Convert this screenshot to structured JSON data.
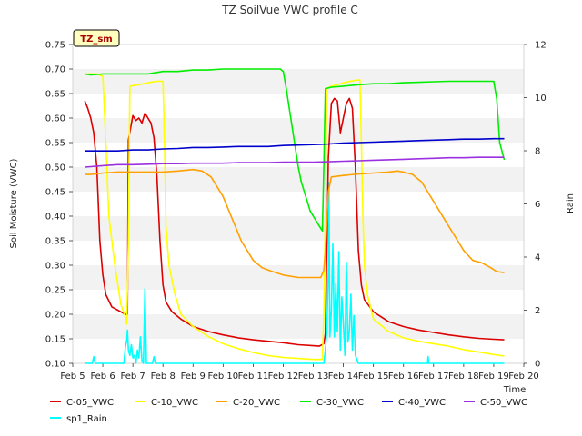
{
  "chart_data": {
    "type": "line",
    "title": "TZ SoilVue VWC profile C",
    "xlabel": "Time",
    "ylabel": "Soil Moisture (VWC)",
    "y2label": "Rain",
    "badge": "TZ_sm",
    "ylim": [
      0.1,
      0.75
    ],
    "y2lim": [
      0,
      12
    ],
    "xlim": [
      5,
      20
    ],
    "x_ticks": [
      5,
      6,
      7,
      8,
      9,
      10,
      11,
      12,
      13,
      14,
      15,
      16,
      17,
      18,
      19,
      20
    ],
    "x_tick_labels": [
      "Feb 5",
      "Feb 6",
      "Feb 7",
      "Feb 8",
      "Feb 9",
      "Feb 10",
      "Feb 11",
      "Feb 12",
      "Feb 13",
      "Feb 14",
      "Feb 15",
      "Feb 16",
      "Feb 17",
      "Feb 18",
      "Feb 19",
      "Feb 20"
    ],
    "y_ticks": [
      0.1,
      0.15,
      0.2,
      0.25,
      0.3,
      0.35,
      0.4,
      0.45,
      0.5,
      0.55,
      0.6,
      0.65,
      0.7,
      0.75
    ],
    "y_tick_labels": [
      "0.10",
      "0.15",
      "0.20",
      "0.25",
      "0.30",
      "0.35",
      "0.40",
      "0.45",
      "0.50",
      "0.55",
      "0.60",
      "0.65",
      "0.70",
      "0.75"
    ],
    "y2_ticks": [
      0,
      2,
      4,
      6,
      8,
      10,
      12
    ],
    "y2_tick_labels": [
      "0",
      "2",
      "4",
      "6",
      "8",
      "10",
      "12"
    ],
    "grid": "horizontal bands",
    "legend_position": "bottom",
    "series": [
      {
        "name": "C-05_VWC",
        "color": "#dd0000",
        "axis": "left",
        "x": [
          5.4,
          5.5,
          5.6,
          5.7,
          5.8,
          5.9,
          6.0,
          6.1,
          6.3,
          6.6,
          6.75,
          6.82,
          6.85,
          7.0,
          7.1,
          7.2,
          7.3,
          7.4,
          7.5,
          7.6,
          7.7,
          7.8,
          7.9,
          8.0,
          8.1,
          8.3,
          8.6,
          9.0,
          9.5,
          10.0,
          10.5,
          11.0,
          11.5,
          12.0,
          12.5,
          13.0,
          13.2,
          13.35,
          13.4,
          13.5,
          13.6,
          13.7,
          13.8,
          13.9,
          14.0,
          14.1,
          14.2,
          14.3,
          14.4,
          14.5,
          14.6,
          14.7,
          15.0,
          15.5,
          16.0,
          16.5,
          17.0,
          17.5,
          18.0,
          18.5,
          19.0,
          19.35
        ],
        "y": [
          0.635,
          0.62,
          0.6,
          0.57,
          0.5,
          0.35,
          0.28,
          0.24,
          0.215,
          0.205,
          0.2,
          0.2,
          0.555,
          0.605,
          0.595,
          0.6,
          0.59,
          0.61,
          0.6,
          0.59,
          0.56,
          0.48,
          0.35,
          0.26,
          0.225,
          0.205,
          0.19,
          0.175,
          0.165,
          0.158,
          0.152,
          0.148,
          0.145,
          0.142,
          0.138,
          0.136,
          0.135,
          0.14,
          0.16,
          0.52,
          0.63,
          0.64,
          0.635,
          0.57,
          0.6,
          0.63,
          0.64,
          0.62,
          0.5,
          0.33,
          0.26,
          0.23,
          0.205,
          0.185,
          0.175,
          0.168,
          0.163,
          0.158,
          0.154,
          0.151,
          0.149,
          0.148
        ]
      },
      {
        "name": "C-10_VWC",
        "color": "#ffff00",
        "axis": "left",
        "x": [
          5.4,
          5.6,
          5.8,
          6.0,
          6.05,
          6.1,
          6.2,
          6.4,
          6.6,
          6.75,
          6.8,
          6.85,
          6.9,
          7.2,
          7.5,
          7.8,
          8.0,
          8.05,
          8.1,
          8.2,
          8.4,
          8.6,
          9.0,
          9.5,
          10.0,
          10.5,
          11.0,
          11.5,
          12.0,
          12.5,
          13.0,
          13.3,
          13.35,
          13.4,
          13.45,
          13.6,
          13.8,
          14.0,
          14.3,
          14.55,
          14.6,
          14.65,
          14.7,
          14.8,
          15.0,
          15.5,
          16.0,
          16.5,
          17.0,
          17.5,
          18.0,
          18.5,
          19.0,
          19.35
        ],
        "y": [
          0.69,
          0.69,
          0.69,
          0.685,
          0.62,
          0.55,
          0.4,
          0.3,
          0.22,
          0.195,
          0.18,
          0.35,
          0.665,
          0.668,
          0.672,
          0.675,
          0.675,
          0.55,
          0.38,
          0.3,
          0.24,
          0.2,
          0.175,
          0.155,
          0.14,
          0.13,
          0.122,
          0.116,
          0.112,
          0.11,
          0.108,
          0.108,
          0.2,
          0.4,
          0.66,
          0.665,
          0.668,
          0.672,
          0.676,
          0.678,
          0.55,
          0.4,
          0.3,
          0.24,
          0.19,
          0.165,
          0.152,
          0.145,
          0.14,
          0.135,
          0.128,
          0.123,
          0.118,
          0.115
        ]
      },
      {
        "name": "C-20_VWC",
        "color": "#ffa000",
        "axis": "left",
        "x": [
          5.4,
          5.6,
          6.0,
          6.5,
          7.0,
          7.5,
          8.0,
          8.5,
          9.0,
          9.3,
          9.6,
          9.8,
          10.0,
          10.2,
          10.4,
          10.6,
          10.8,
          11.0,
          11.3,
          11.6,
          12.0,
          12.5,
          13.0,
          13.25,
          13.35,
          13.4,
          13.5,
          13.6,
          14.0,
          14.5,
          15.0,
          15.5,
          15.8,
          16.0,
          16.3,
          16.6,
          16.8,
          17.0,
          17.2,
          17.4,
          17.6,
          17.8,
          18.0,
          18.3,
          18.6,
          18.9,
          19.1,
          19.35
        ],
        "y": [
          0.485,
          0.485,
          0.488,
          0.49,
          0.49,
          0.49,
          0.49,
          0.492,
          0.495,
          0.492,
          0.48,
          0.46,
          0.44,
          0.41,
          0.38,
          0.35,
          0.33,
          0.31,
          0.295,
          0.288,
          0.28,
          0.275,
          0.275,
          0.275,
          0.29,
          0.33,
          0.45,
          0.48,
          0.483,
          0.486,
          0.488,
          0.49,
          0.492,
          0.49,
          0.485,
          0.47,
          0.45,
          0.43,
          0.41,
          0.39,
          0.37,
          0.35,
          0.33,
          0.31,
          0.305,
          0.295,
          0.287,
          0.285
        ]
      },
      {
        "name": "C-30_VWC",
        "color": "#00ee00",
        "axis": "left",
        "x": [
          5.4,
          5.6,
          6.0,
          6.5,
          7.0,
          7.5,
          8.0,
          8.5,
          9.0,
          9.5,
          10.0,
          10.5,
          11.0,
          11.5,
          11.9,
          12.0,
          12.1,
          12.2,
          12.3,
          12.4,
          12.5,
          12.6,
          12.7,
          12.8,
          12.9,
          13.0,
          13.1,
          13.2,
          13.3,
          13.35,
          13.4,
          13.6,
          14.0,
          14.5,
          15.0,
          15.5,
          16.0,
          16.5,
          17.0,
          17.5,
          18.0,
          18.5,
          19.0,
          19.1,
          19.2,
          19.35
        ],
        "y": [
          0.69,
          0.688,
          0.69,
          0.69,
          0.69,
          0.69,
          0.695,
          0.695,
          0.698,
          0.698,
          0.7,
          0.7,
          0.7,
          0.7,
          0.7,
          0.695,
          0.66,
          0.62,
          0.58,
          0.54,
          0.5,
          0.47,
          0.45,
          0.43,
          0.41,
          0.4,
          0.39,
          0.38,
          0.37,
          0.5,
          0.66,
          0.663,
          0.665,
          0.668,
          0.67,
          0.67,
          0.672,
          0.673,
          0.674,
          0.675,
          0.675,
          0.675,
          0.675,
          0.64,
          0.55,
          0.515
        ]
      },
      {
        "name": "C-40_VWC",
        "color": "#0000cc",
        "axis": "left",
        "x": [
          5.4,
          6.0,
          6.5,
          7.0,
          7.5,
          8.0,
          8.5,
          9.0,
          9.5,
          10.0,
          10.5,
          11.0,
          11.5,
          12.0,
          12.5,
          13.0,
          13.5,
          14.0,
          14.5,
          15.0,
          15.5,
          16.0,
          16.5,
          17.0,
          17.5,
          18.0,
          18.5,
          19.0,
          19.35
        ],
        "y": [
          0.533,
          0.533,
          0.533,
          0.535,
          0.535,
          0.537,
          0.538,
          0.54,
          0.54,
          0.541,
          0.542,
          0.542,
          0.542,
          0.544,
          0.545,
          0.546,
          0.547,
          0.549,
          0.55,
          0.551,
          0.552,
          0.553,
          0.554,
          0.555,
          0.556,
          0.557,
          0.557,
          0.558,
          0.558
        ]
      },
      {
        "name": "C-50_VWC",
        "color": "#9a30e0",
        "axis": "left",
        "x": [
          5.4,
          6.0,
          6.5,
          7.0,
          7.5,
          8.0,
          8.5,
          9.0,
          9.5,
          10.0,
          10.5,
          11.0,
          11.5,
          12.0,
          12.5,
          13.0,
          13.5,
          14.0,
          14.5,
          15.0,
          15.5,
          16.0,
          16.5,
          17.0,
          17.5,
          18.0,
          18.5,
          19.0,
          19.35
        ],
        "y": [
          0.5,
          0.503,
          0.505,
          0.505,
          0.506,
          0.507,
          0.507,
          0.508,
          0.508,
          0.508,
          0.509,
          0.509,
          0.509,
          0.51,
          0.51,
          0.51,
          0.511,
          0.512,
          0.513,
          0.514,
          0.515,
          0.516,
          0.517,
          0.518,
          0.519,
          0.519,
          0.52,
          0.52,
          0.52
        ]
      },
      {
        "name": "sp1_Rain",
        "color": "#00ffff",
        "axis": "right",
        "x": [
          5.4,
          5.65,
          5.7,
          5.75,
          6.0,
          6.6,
          6.7,
          6.75,
          6.8,
          6.82,
          6.85,
          6.9,
          6.95,
          7.0,
          7.05,
          7.1,
          7.15,
          7.2,
          7.25,
          7.3,
          7.35,
          7.4,
          7.45,
          7.5,
          7.55,
          7.6,
          7.65,
          7.7,
          7.75,
          7.8,
          8.0,
          9.0,
          10.0,
          11.0,
          12.0,
          13.0,
          13.3,
          13.35,
          13.4,
          13.45,
          13.5,
          13.52,
          13.55,
          13.6,
          13.65,
          13.7,
          13.75,
          13.8,
          13.85,
          13.9,
          13.95,
          14.0,
          14.05,
          14.1,
          14.15,
          14.2,
          14.25,
          14.3,
          14.35,
          14.4,
          14.5,
          15.0,
          16.0,
          16.8,
          16.82,
          16.84,
          17.0,
          18.0,
          19.0,
          19.35
        ],
        "y": [
          0,
          0,
          0.25,
          0,
          0,
          0,
          0,
          0.6,
          0.9,
          1.25,
          0.5,
          0.3,
          0.7,
          0.2,
          0.3,
          0,
          0.5,
          0.2,
          1.0,
          0.1,
          0,
          2.8,
          0,
          0,
          0,
          0,
          0,
          0.25,
          0,
          0,
          0,
          0,
          0,
          0,
          0,
          0,
          0,
          0,
          0.5,
          1.2,
          3.5,
          6.8,
          1.0,
          2.0,
          4.5,
          1.0,
          3.0,
          1.2,
          4.2,
          0.5,
          2.5,
          1.5,
          0.3,
          3.8,
          0.8,
          1.2,
          2.6,
          0.5,
          1.8,
          0.3,
          0,
          0,
          0,
          0,
          0.25,
          0,
          0,
          0,
          0,
          0
        ]
      }
    ]
  }
}
